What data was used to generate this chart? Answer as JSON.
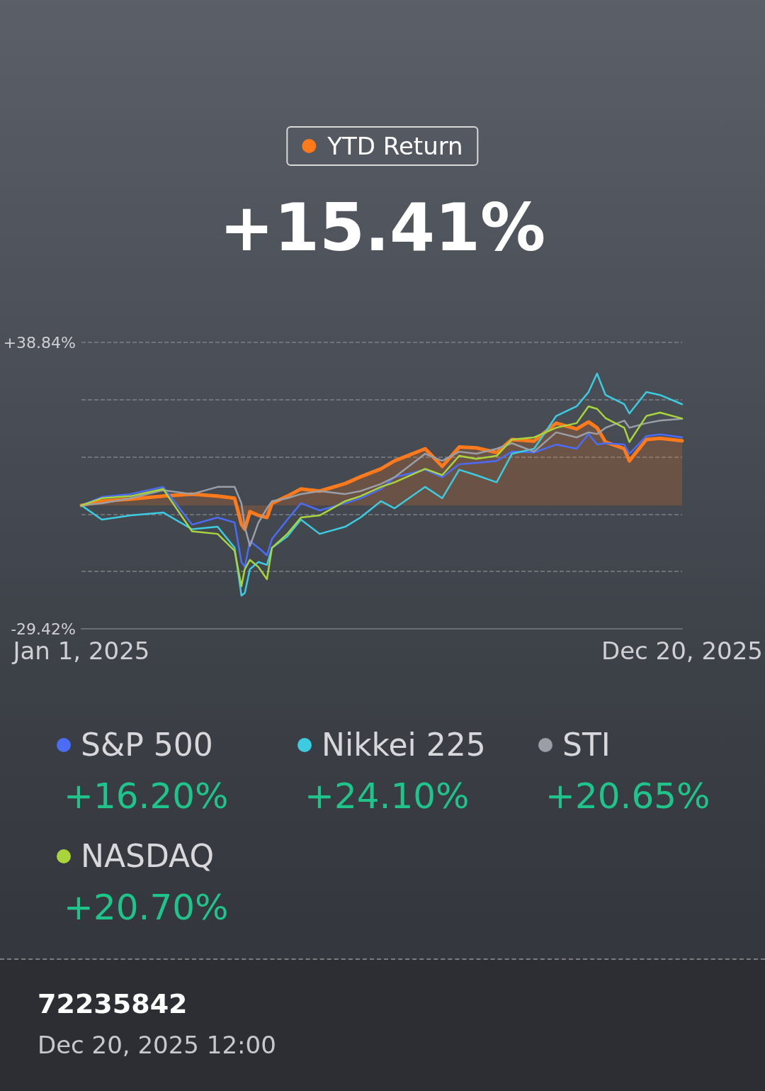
{
  "chart_data": {
    "type": "line",
    "title": "+15.41%",
    "x": [
      "2025-01-01",
      "2025-01-13",
      "2025-01-30",
      "2025-02-18",
      "2025-03-07",
      "2025-03-22",
      "2025-04-01",
      "2025-04-05",
      "2025-04-07",
      "2025-04-10",
      "2025-04-15",
      "2025-04-20",
      "2025-04-23",
      "2025-05-02",
      "2025-05-10",
      "2025-05-21",
      "2025-06-05",
      "2025-06-14",
      "2025-06-26",
      "2025-07-04",
      "2025-07-22",
      "2025-08-01",
      "2025-08-11",
      "2025-08-21",
      "2025-09-02",
      "2025-09-11",
      "2025-09-24",
      "2025-10-07",
      "2025-10-19",
      "2025-10-26",
      "2025-10-31",
      "2025-11-05",
      "2025-11-16",
      "2025-11-19",
      "2025-11-29",
      "2025-12-07",
      "2025-12-20"
    ],
    "series": [
      {
        "name": "YTD Return",
        "type": "area",
        "color": "#ff7a1a",
        "values": [
          0,
          1.0,
          1.5,
          2.2,
          2.7,
          2.2,
          1.7,
          -4.5,
          -5.7,
          -1.5,
          -2.4,
          -2.9,
          0.5,
          2.2,
          3.9,
          3.4,
          5.2,
          6.8,
          8.7,
          10.6,
          13.5,
          9.3,
          13.9,
          13.7,
          12.6,
          15.7,
          15.3,
          19.6,
          18.2,
          19.9,
          18.5,
          15.1,
          13.5,
          10.6,
          15.7,
          16.0,
          15.41
        ]
      },
      {
        "name": "S&P 500",
        "color": "#4a6cf7",
        "values": [
          0,
          2.0,
          2.7,
          4.4,
          -4.6,
          -2.9,
          -4.1,
          -13.5,
          -14.7,
          -8.5,
          -10.1,
          -11.9,
          -8.0,
          -3.4,
          0.5,
          -1.2,
          0.5,
          1.7,
          3.9,
          6.7,
          8.5,
          6.7,
          9.8,
          10.1,
          10.6,
          12.8,
          12.6,
          14.5,
          13.5,
          17.0,
          14.5,
          14.8,
          14.5,
          12.3,
          16.5,
          16.9,
          16.2
        ]
      },
      {
        "name": "Nikkei 225",
        "color": "#3ccbe0",
        "values": [
          0,
          -3.4,
          -2.4,
          -1.7,
          -5.7,
          -5.1,
          -10.1,
          -21.5,
          -20.9,
          -15.2,
          -13.5,
          -14.2,
          -10.1,
          -7.4,
          -3.4,
          -6.8,
          -5.1,
          -2.9,
          1.0,
          -0.7,
          4.4,
          1.7,
          8.5,
          7.2,
          5.5,
          12.3,
          13.5,
          21.3,
          23.6,
          27.0,
          31.4,
          26.3,
          24.1,
          21.9,
          27.0,
          26.3,
          24.1
        ]
      },
      {
        "name": "STI",
        "color": "#9a9ea6",
        "values": [
          0,
          0.5,
          1.7,
          3.6,
          2.7,
          4.4,
          4.4,
          0.5,
          -5.1,
          -9.7,
          -4.1,
          -0.7,
          1.0,
          1.7,
          2.7,
          3.4,
          2.7,
          3.4,
          5.1,
          6.7,
          12.3,
          10.6,
          12.8,
          12.3,
          13.5,
          14.8,
          12.8,
          17.4,
          16.2,
          17.4,
          17.0,
          18.5,
          20.2,
          18.5,
          19.6,
          20.2,
          20.65
        ]
      },
      {
        "name": "NASDAQ",
        "color": "#a8d43c",
        "values": [
          0,
          1.7,
          2.2,
          3.9,
          -6.2,
          -6.8,
          -10.8,
          -19.3,
          -15.2,
          -13.0,
          -14.7,
          -17.6,
          -10.1,
          -6.8,
          -2.9,
          -2.4,
          1.0,
          2.2,
          4.4,
          5.5,
          8.7,
          7.2,
          11.8,
          11.1,
          11.8,
          15.7,
          16.2,
          18.5,
          19.6,
          23.6,
          23.0,
          20.8,
          18.5,
          15.1,
          21.3,
          22.1,
          20.7
        ]
      }
    ],
    "xlim": [
      "2025-01-01",
      "2025-12-20"
    ],
    "xticks": [
      {
        "value": "2025-01-01",
        "label": "Jan 1, 2025"
      },
      {
        "value": "2025-12-20",
        "label": "Dec 20, 2025"
      }
    ],
    "ylim": [
      -29.42,
      38.84
    ],
    "yticks": [
      {
        "value": -29.42,
        "label": "-29.42%"
      },
      {
        "value": -15.77,
        "label": null
      },
      {
        "value": -2.12,
        "label": null
      },
      {
        "value": 11.54,
        "label": null
      },
      {
        "value": 25.19,
        "label": null
      },
      {
        "value": 38.84,
        "label": "+38.84%"
      }
    ],
    "grid": "y",
    "legend": "bottom",
    "marker": "none",
    "line_style": "solid",
    "annotations": [
      "+16.20%",
      "+24.10%",
      "+20.65%",
      "+20.70%",
      "72235842",
      "Dec 20, 2025 12:00"
    ]
  }
}
